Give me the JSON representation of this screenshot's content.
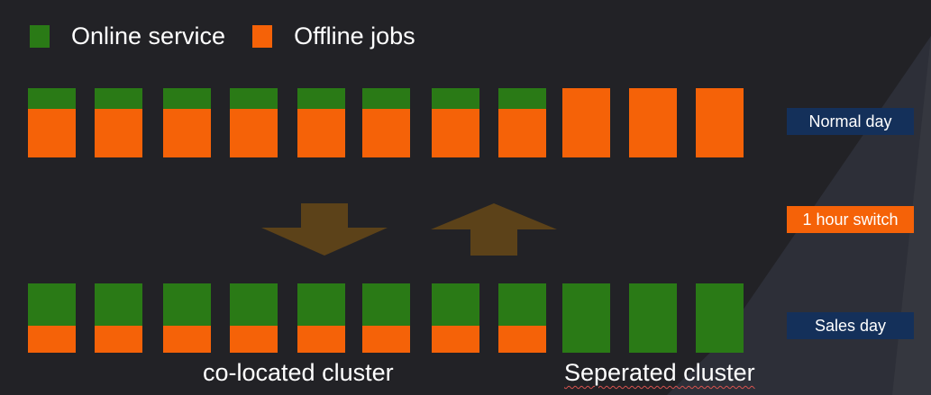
{
  "legend": {
    "online_label": "Online service",
    "offline_label": "Offline jobs"
  },
  "colors": {
    "online": "#2a7a16",
    "offline": "#f56208",
    "background": "#222226",
    "background_wedge": "#2d2f38",
    "arrow": "#5c4219",
    "tag_navy": "#14305a",
    "tag_orange": "#f56208"
  },
  "rows": {
    "normal_day": {
      "label": "Normal day",
      "bars": [
        {
          "online": 0.3,
          "offline": 0.7
        },
        {
          "online": 0.3,
          "offline": 0.7
        },
        {
          "online": 0.3,
          "offline": 0.7
        },
        {
          "online": 0.3,
          "offline": 0.7
        },
        {
          "online": 0.3,
          "offline": 0.7
        },
        {
          "online": 0.3,
          "offline": 0.7
        },
        {
          "online": 0.3,
          "offline": 0.7
        },
        {
          "online": 0.3,
          "offline": 0.7
        },
        {
          "online": 0,
          "offline": 1
        },
        {
          "online": 0,
          "offline": 1
        },
        {
          "online": 0,
          "offline": 1
        }
      ]
    },
    "switch": {
      "label": "1 hour switch"
    },
    "sales_day": {
      "label": "Sales day",
      "bars": [
        {
          "online": 0.61,
          "offline": 0.39
        },
        {
          "online": 0.61,
          "offline": 0.39
        },
        {
          "online": 0.61,
          "offline": 0.39
        },
        {
          "online": 0.61,
          "offline": 0.39
        },
        {
          "online": 0.61,
          "offline": 0.39
        },
        {
          "online": 0.61,
          "offline": 0.39
        },
        {
          "online": 0.61,
          "offline": 0.39
        },
        {
          "online": 0.61,
          "offline": 0.39
        },
        {
          "online": 1,
          "offline": 0
        },
        {
          "online": 1,
          "offline": 0
        },
        {
          "online": 1,
          "offline": 0
        }
      ]
    }
  },
  "clusters": {
    "colocated_label": "co-located cluster",
    "separated_label": "Seperated cluster"
  }
}
